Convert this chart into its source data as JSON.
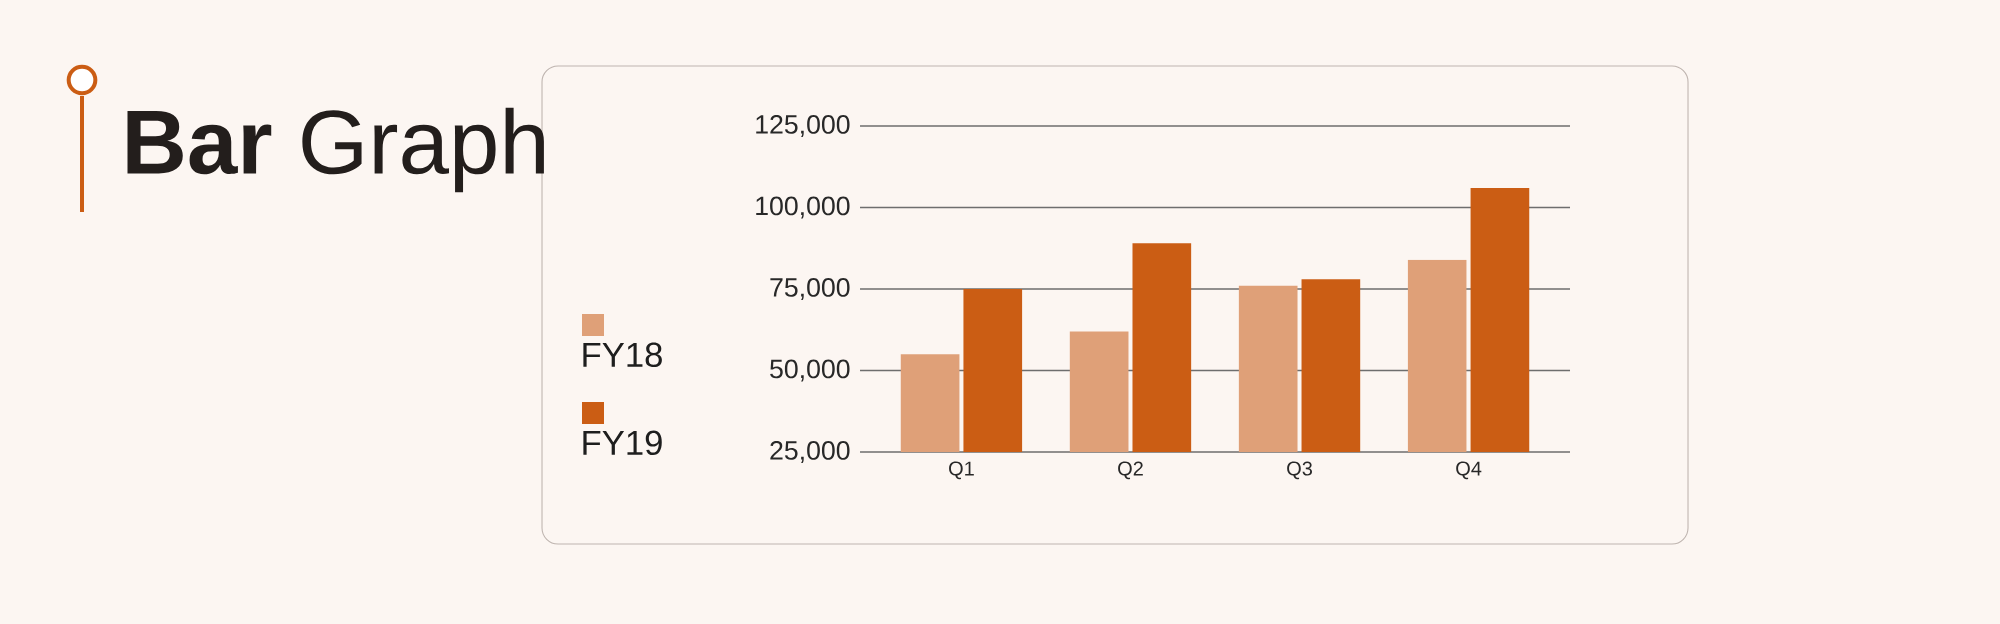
{
  "chart_data": {
    "type": "bar",
    "title": "**Bar** Graph",
    "categories": [
      "Q1",
      "Q2",
      "Q3",
      "Q4"
    ],
    "series": [
      {
        "name": "FY18",
        "color": "#dfa078",
        "values": [
          55000,
          62000,
          76000,
          84000
        ]
      },
      {
        "name": "FY19",
        "color": "#cb5d14",
        "values": [
          75000,
          89000,
          78000,
          106000
        ]
      }
    ],
    "ylim": [
      25000,
      125000
    ],
    "yticks": [
      {
        "value": 25000,
        "label": "25,000"
      },
      {
        "value": 50000,
        "label": "50,000"
      },
      {
        "value": 75000,
        "label": "75,000"
      },
      {
        "value": 100000,
        "label": "100,000"
      },
      {
        "value": 125000,
        "label": "125,000"
      }
    ],
    "grid": "y",
    "legend": "left"
  }
}
